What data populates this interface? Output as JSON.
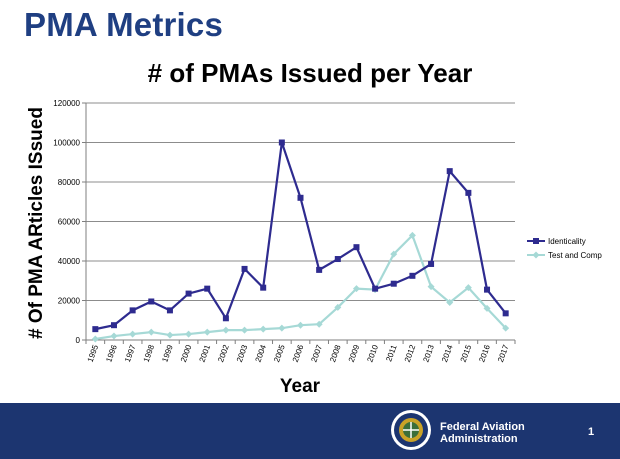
{
  "slide": {
    "title": "PMA Metrics"
  },
  "footer": {
    "agency_line1": "Federal Aviation",
    "agency_line2": "Administration",
    "page_number": "1",
    "seal": "faa-seal-logo",
    "colors": {
      "bar": "#1c3570",
      "text": "#ffffff"
    }
  },
  "colors": {
    "slide_title": "#1f3f82",
    "identicality": "#2e2b8f",
    "test_and_comp": "#a6d9d6",
    "grid": "#8c8c8c"
  },
  "chart_data": {
    "type": "line",
    "title": "# of PMAs Issued per Year",
    "xlabel": "Year",
    "ylabel": "# Of PMA ARticles ISsued",
    "ylim": [
      0,
      120000
    ],
    "yticks": [
      0,
      20000,
      40000,
      60000,
      80000,
      100000,
      120000
    ],
    "ytick_labels": [
      "0",
      "20000",
      "40000",
      "60000",
      "80000",
      "100000",
      "120000"
    ],
    "grid": "horizontal",
    "legend_position": "right",
    "categories": [
      "1995",
      "1996",
      "1997",
      "1998",
      "1999",
      "2000",
      "2001",
      "2002",
      "2003",
      "2004",
      "2005",
      "2006",
      "2007",
      "2008",
      "2009",
      "2010",
      "2011",
      "2012",
      "2013",
      "2014",
      "2015",
      "2016",
      "2017"
    ],
    "series": [
      {
        "name": "Identicality",
        "marker": "square",
        "values": [
          5500,
          7500,
          15000,
          19500,
          15000,
          23500,
          26000,
          11000,
          36000,
          26500,
          100000,
          72000,
          35500,
          41000,
          47000,
          26000,
          28500,
          32500,
          38500,
          85500,
          74500,
          25500,
          13500
        ]
      },
      {
        "name": "Test and Comp",
        "marker": "diamond",
        "values": [
          500,
          2000,
          3000,
          4000,
          2500,
          3000,
          4000,
          5000,
          5000,
          5500,
          6000,
          7500,
          8000,
          16500,
          26000,
          25500,
          43500,
          53000,
          27000,
          19000,
          26500,
          16000,
          6000
        ]
      }
    ]
  }
}
